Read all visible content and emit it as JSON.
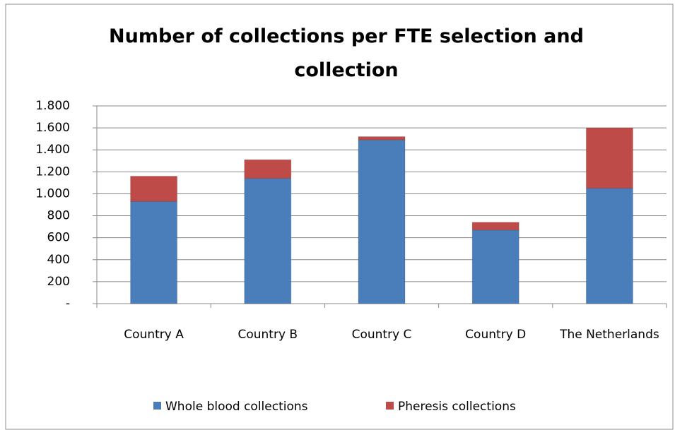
{
  "chart_data": {
    "type": "stacked_bar",
    "title": "Number of collections per FTE selection and collection",
    "categories": [
      "Country A",
      "Country B",
      "Country C",
      "Country D",
      "The Netherlands"
    ],
    "series": [
      {
        "name": "Whole blood collections",
        "color": "#4a7ebb",
        "values": [
          930,
          1140,
          1490,
          670,
          1050
        ]
      },
      {
        "name": "Pheresis collections",
        "color": "#be4b48",
        "values": [
          230,
          170,
          30,
          70,
          550
        ]
      }
    ],
    "ylim": [
      0,
      1800
    ],
    "yticks": [
      {
        "value": 0,
        "label": "-"
      },
      200,
      400,
      600,
      800,
      {
        "value": 1000,
        "label": "1.000"
      },
      {
        "value": 1200,
        "label": "1.200"
      },
      {
        "value": 1400,
        "label": "1.400"
      },
      {
        "value": 1600,
        "label": "1.600"
      },
      {
        "value": 1800,
        "label": "1.800"
      }
    ],
    "grid": true,
    "legend": "bottom"
  }
}
